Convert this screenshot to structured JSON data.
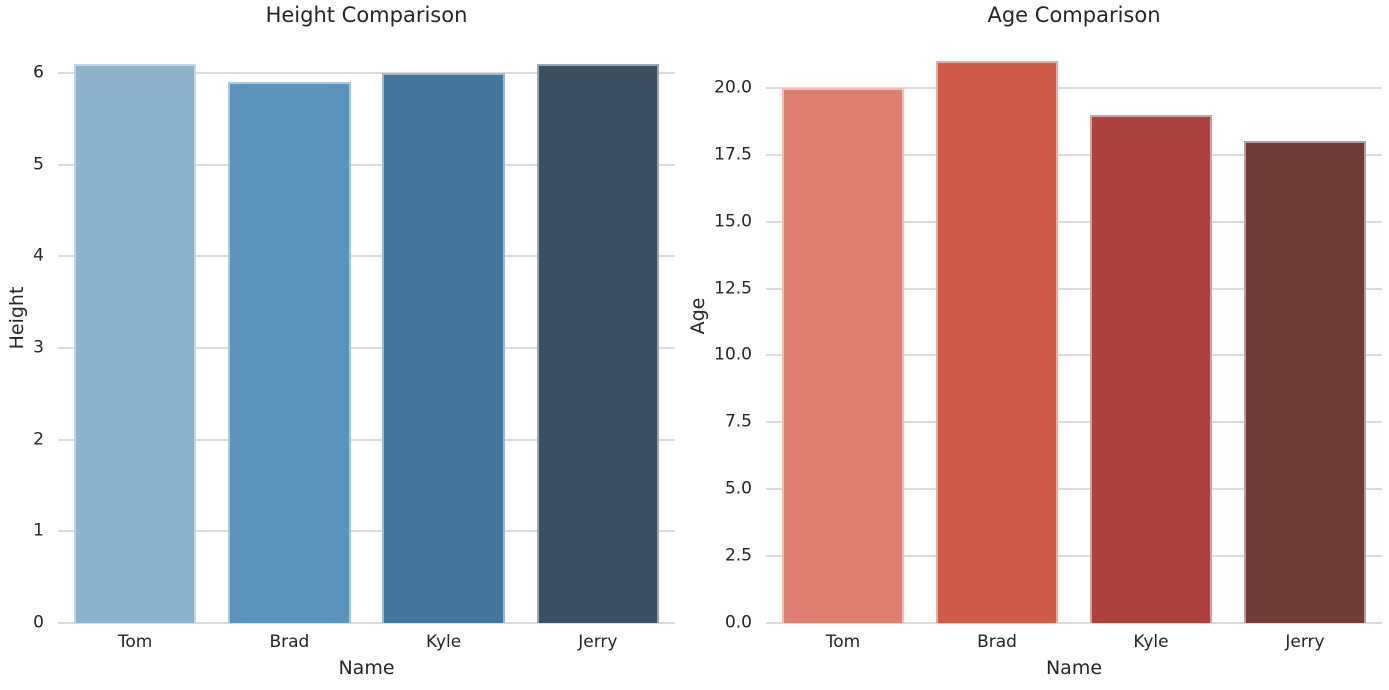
{
  "figure": {
    "background": "#ffffff",
    "text_color": "#262626",
    "grid_color": "#dcdcdc"
  },
  "chart_data": [
    {
      "type": "bar",
      "title": "Height Comparison",
      "xlabel": "Name",
      "ylabel": "Height",
      "categories": [
        "Tom",
        "Brad",
        "Kyle",
        "Jerry"
      ],
      "values": [
        6.1,
        5.9,
        6.0,
        6.1
      ],
      "ylim": [
        0,
        6.405
      ],
      "ytick_values": [
        0,
        1,
        2,
        3,
        4,
        5,
        6
      ],
      "ytick_labels": [
        "0",
        "1",
        "2",
        "3",
        "4",
        "5",
        "6"
      ],
      "bar_colors": [
        "#8CB2CC",
        "#5C93BA",
        "#44759B",
        "#3B4F61"
      ],
      "bar_edge_colors": [
        "#C4D7E4",
        "#ADC8DC",
        "#A0B9CC",
        "#9CA6B1"
      ],
      "grid": true,
      "legend": null
    },
    {
      "type": "bar",
      "title": "Age Comparison",
      "xlabel": "Name",
      "ylabel": "Age",
      "categories": [
        "Tom",
        "Brad",
        "Kyle",
        "Jerry"
      ],
      "values": [
        20,
        21,
        19,
        18
      ],
      "ylim": [
        0,
        22.05
      ],
      "ytick_values": [
        0,
        2.5,
        5,
        7.5,
        10,
        12.5,
        15,
        17.5,
        20
      ],
      "ytick_labels": [
        "0.0",
        "2.5",
        "5.0",
        "7.5",
        "10.0",
        "12.5",
        "15.0",
        "17.5",
        "20.0"
      ],
      "bar_colors": [
        "#DD8071",
        "#CF5A4C",
        "#AC413E",
        "#6E3C39"
      ],
      "bar_edge_colors": [
        "#EEC0B8",
        "#E7ACA5",
        "#D5A09E",
        "#B79E9C"
      ],
      "grid": true,
      "legend": null
    }
  ]
}
